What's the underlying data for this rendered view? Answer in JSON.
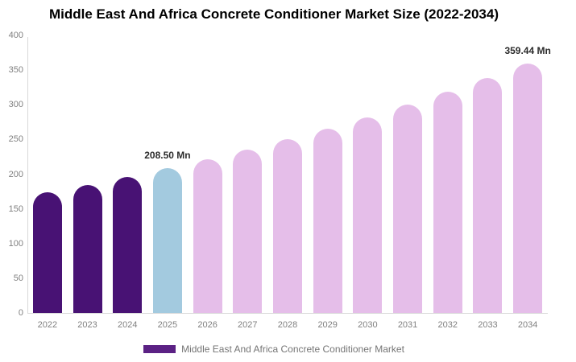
{
  "title": "Middle East And Africa Concrete Conditioner Market Size (2022-2034)",
  "legend": {
    "label": "Middle East And Africa Concrete Conditioner Market",
    "swatch_color": "#5b2184"
  },
  "colors": {
    "historical": "#481274",
    "current": "#a3cadf",
    "forecast": "#e5bee9",
    "axis": "#d9d9d9",
    "tick_label": "#808080",
    "value_label": "#2b2b2b",
    "title": "#000000",
    "background": "#ffffff"
  },
  "annotations": [
    {
      "category": "2025",
      "text": "208.50 Mn"
    },
    {
      "category": "2034",
      "text": "359.44 Mn"
    }
  ],
  "chart_data": {
    "type": "bar",
    "title": "Middle East And Africa Concrete Conditioner Market Size (2022-2034)",
    "categories": [
      "2022",
      "2023",
      "2024",
      "2025",
      "2026",
      "2027",
      "2028",
      "2029",
      "2030",
      "2031",
      "2032",
      "2033",
      "2034"
    ],
    "values": [
      173.9,
      184.7,
      196.2,
      208.5,
      221.5,
      235.3,
      250.0,
      265.6,
      282.2,
      299.8,
      318.5,
      338.4,
      359.44
    ],
    "bar_roles": [
      "historical",
      "historical",
      "historical",
      "current",
      "forecast",
      "forecast",
      "forecast",
      "forecast",
      "forecast",
      "forecast",
      "forecast",
      "forecast",
      "forecast"
    ],
    "unit": "Mn",
    "labeled_points": {
      "2025": "208.50 Mn",
      "2034": "359.44 Mn"
    },
    "xlabel": "",
    "ylabel": "",
    "ylim": [
      0,
      400
    ],
    "yticks": [
      0,
      50,
      100,
      150,
      200,
      250,
      300,
      350,
      400
    ],
    "grid": false,
    "legend_position": "bottom",
    "legend_entries": [
      "Middle East And Africa Concrete Conditioner Market"
    ]
  }
}
